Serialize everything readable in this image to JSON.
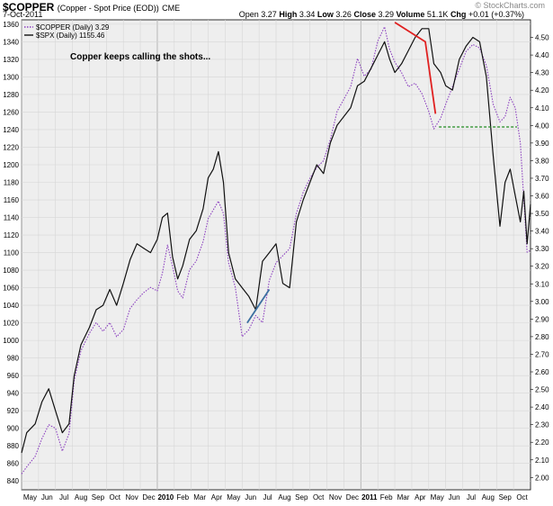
{
  "header": {
    "symbol": "$COPPER",
    "description": "(Copper - Spot Price (EOD))",
    "exchange": "CME",
    "date": "7-Oct-2011",
    "watermark": "© StockCharts.com"
  },
  "quote": {
    "open_label": "Open",
    "open": "3.27",
    "high_label": "High",
    "high": "3.34",
    "low_label": "Low",
    "low": "3.26",
    "close_label": "Close",
    "close": "3.29",
    "volume_label": "Volume",
    "volume": "51.1K",
    "chg_label": "Chg",
    "chg": "+0.01 (+0.37%)"
  },
  "chart_data": {
    "type": "line",
    "title": "$COPPER (Copper - Spot Price (EOD)) CME",
    "annotation": "Copper keeps calling the shots...",
    "legend_position": "top-left",
    "grid": true,
    "x_axis": {
      "tick_labels": [
        "May",
        "Jun",
        "Jul",
        "Aug",
        "Sep",
        "Oct",
        "Nov",
        "Dec",
        "2010",
        "Feb",
        "Mar",
        "Apr",
        "May",
        "Jun",
        "Jul",
        "Aug",
        "Sep",
        "Oct",
        "Nov",
        "Dec",
        "2011",
        "Feb",
        "Mar",
        "Apr",
        "May",
        "Jun",
        "Jul",
        "Aug",
        "Sep",
        "Oct"
      ],
      "range_months": [
        0,
        30
      ]
    },
    "y_left": {
      "series": "$SPX",
      "ylim": [
        830,
        1365
      ],
      "ticks": [
        840,
        860,
        880,
        900,
        920,
        940,
        960,
        980,
        1000,
        1020,
        1040,
        1060,
        1080,
        1100,
        1120,
        1140,
        1160,
        1180,
        1200,
        1220,
        1240,
        1260,
        1280,
        1300,
        1320,
        1340,
        1360
      ]
    },
    "y_right": {
      "series": "$COPPER",
      "ylim": [
        1.93,
        4.6
      ],
      "ticks": [
        "2.00",
        "2.10",
        "2.20",
        "2.30",
        "2.40",
        "2.50",
        "2.60",
        "2.70",
        "2.80",
        "2.90",
        "3.00",
        "3.10",
        "3.20",
        "3.30",
        "3.40",
        "3.50",
        "3.60",
        "3.70",
        "3.80",
        "3.90",
        "4.00",
        "4.10",
        "4.20",
        "4.30",
        "4.40",
        "4.50"
      ]
    },
    "series": [
      {
        "name": "$COPPER (Daily) 3.29",
        "axis": "right",
        "color": "#8b3fbf",
        "style": "dotted",
        "points": [
          [
            0,
            2.02
          ],
          [
            0.3,
            2.06
          ],
          [
            0.8,
            2.12
          ],
          [
            1.2,
            2.22
          ],
          [
            1.6,
            2.3
          ],
          [
            2.0,
            2.28
          ],
          [
            2.4,
            2.15
          ],
          [
            2.8,
            2.25
          ],
          [
            3.1,
            2.55
          ],
          [
            3.5,
            2.72
          ],
          [
            4.0,
            2.82
          ],
          [
            4.4,
            2.88
          ],
          [
            4.8,
            2.83
          ],
          [
            5.2,
            2.88
          ],
          [
            5.6,
            2.8
          ],
          [
            6.0,
            2.84
          ],
          [
            6.4,
            2.96
          ],
          [
            6.8,
            3.01
          ],
          [
            7.2,
            3.05
          ],
          [
            7.6,
            3.08
          ],
          [
            8.0,
            3.06
          ],
          [
            8.3,
            3.16
          ],
          [
            8.6,
            3.32
          ],
          [
            8.9,
            3.2
          ],
          [
            9.2,
            3.06
          ],
          [
            9.5,
            3.02
          ],
          [
            9.9,
            3.18
          ],
          [
            10.3,
            3.23
          ],
          [
            10.7,
            3.34
          ],
          [
            11.0,
            3.47
          ],
          [
            11.3,
            3.52
          ],
          [
            11.6,
            3.57
          ],
          [
            11.9,
            3.5
          ],
          [
            12.2,
            3.22
          ],
          [
            12.6,
            3.08
          ],
          [
            13.0,
            2.8
          ],
          [
            13.4,
            2.84
          ],
          [
            13.8,
            2.92
          ],
          [
            14.2,
            2.88
          ],
          [
            14.6,
            3.12
          ],
          [
            15.0,
            3.22
          ],
          [
            15.4,
            3.26
          ],
          [
            15.8,
            3.3
          ],
          [
            16.2,
            3.5
          ],
          [
            16.6,
            3.62
          ],
          [
            17.0,
            3.7
          ],
          [
            17.4,
            3.76
          ],
          [
            17.8,
            3.8
          ],
          [
            18.2,
            3.92
          ],
          [
            18.6,
            4.08
          ],
          [
            19.0,
            4.15
          ],
          [
            19.4,
            4.22
          ],
          [
            19.8,
            4.38
          ],
          [
            20.2,
            4.28
          ],
          [
            20.6,
            4.32
          ],
          [
            21.0,
            4.48
          ],
          [
            21.4,
            4.56
          ],
          [
            21.7,
            4.43
          ],
          [
            22.0,
            4.36
          ],
          [
            22.4,
            4.3
          ],
          [
            22.8,
            4.22
          ],
          [
            23.2,
            4.24
          ],
          [
            23.6,
            4.18
          ],
          [
            24.0,
            4.08
          ],
          [
            24.3,
            3.98
          ],
          [
            24.7,
            4.04
          ],
          [
            25.0,
            4.12
          ],
          [
            25.4,
            4.22
          ],
          [
            25.8,
            4.32
          ],
          [
            26.2,
            4.42
          ],
          [
            26.6,
            4.46
          ],
          [
            27.0,
            4.44
          ],
          [
            27.4,
            4.34
          ],
          [
            27.8,
            4.12
          ],
          [
            28.2,
            4.02
          ],
          [
            28.5,
            4.05
          ],
          [
            28.8,
            4.16
          ],
          [
            29.1,
            4.1
          ],
          [
            29.4,
            3.9
          ],
          [
            29.6,
            3.58
          ],
          [
            29.8,
            3.28
          ],
          [
            30.0,
            3.29
          ]
        ]
      },
      {
        "name": "$SPX (Daily) 1155.46",
        "axis": "left",
        "color": "#111111",
        "style": "solid",
        "points": [
          [
            0,
            872
          ],
          [
            0.3,
            895
          ],
          [
            0.8,
            905
          ],
          [
            1.2,
            930
          ],
          [
            1.6,
            945
          ],
          [
            2.0,
            920
          ],
          [
            2.4,
            895
          ],
          [
            2.8,
            905
          ],
          [
            3.1,
            960
          ],
          [
            3.5,
            995
          ],
          [
            4.0,
            1015
          ],
          [
            4.4,
            1035
          ],
          [
            4.8,
            1040
          ],
          [
            5.2,
            1058
          ],
          [
            5.6,
            1040
          ],
          [
            6.0,
            1065
          ],
          [
            6.4,
            1092
          ],
          [
            6.8,
            1110
          ],
          [
            7.2,
            1105
          ],
          [
            7.6,
            1100
          ],
          [
            8.0,
            1115
          ],
          [
            8.3,
            1140
          ],
          [
            8.6,
            1145
          ],
          [
            8.9,
            1095
          ],
          [
            9.2,
            1070
          ],
          [
            9.5,
            1085
          ],
          [
            9.9,
            1115
          ],
          [
            10.3,
            1125
          ],
          [
            10.7,
            1150
          ],
          [
            11.0,
            1185
          ],
          [
            11.3,
            1195
          ],
          [
            11.6,
            1215
          ],
          [
            11.9,
            1180
          ],
          [
            12.2,
            1100
          ],
          [
            12.6,
            1070
          ],
          [
            13.0,
            1060
          ],
          [
            13.4,
            1050
          ],
          [
            13.8,
            1035
          ],
          [
            14.2,
            1090
          ],
          [
            14.6,
            1100
          ],
          [
            15.0,
            1110
          ],
          [
            15.4,
            1065
          ],
          [
            15.8,
            1060
          ],
          [
            16.2,
            1135
          ],
          [
            16.6,
            1160
          ],
          [
            17.0,
            1180
          ],
          [
            17.4,
            1200
          ],
          [
            17.8,
            1190
          ],
          [
            18.2,
            1225
          ],
          [
            18.6,
            1245
          ],
          [
            19.0,
            1255
          ],
          [
            19.4,
            1265
          ],
          [
            19.8,
            1290
          ],
          [
            20.2,
            1295
          ],
          [
            20.6,
            1310
          ],
          [
            21.0,
            1325
          ],
          [
            21.4,
            1340
          ],
          [
            21.7,
            1320
          ],
          [
            22.0,
            1305
          ],
          [
            22.4,
            1315
          ],
          [
            22.8,
            1330
          ],
          [
            23.2,
            1345
          ],
          [
            23.6,
            1355
          ],
          [
            24.0,
            1355
          ],
          [
            24.3,
            1315
          ],
          [
            24.7,
            1305
          ],
          [
            25.0,
            1290
          ],
          [
            25.4,
            1285
          ],
          [
            25.8,
            1320
          ],
          [
            26.2,
            1335
          ],
          [
            26.6,
            1345
          ],
          [
            27.0,
            1340
          ],
          [
            27.4,
            1300
          ],
          [
            27.8,
            1210
          ],
          [
            28.2,
            1130
          ],
          [
            28.5,
            1180
          ],
          [
            28.8,
            1195
          ],
          [
            29.1,
            1165
          ],
          [
            29.4,
            1135
          ],
          [
            29.6,
            1170
          ],
          [
            29.8,
            1110
          ],
          [
            30.0,
            1155
          ]
        ]
      }
    ],
    "trendlines": [
      {
        "axis": "left",
        "color": "#e02020",
        "style": "solid",
        "points": [
          [
            22.0,
            1362
          ],
          [
            23.8,
            1340
          ],
          [
            24.4,
            1258
          ]
        ]
      },
      {
        "axis": "left",
        "color": "#1f8a1f",
        "style": "dashed",
        "points": [
          [
            24.6,
            1243
          ],
          [
            29.2,
            1243
          ]
        ]
      },
      {
        "axis": "left",
        "color": "#3b6fa0",
        "style": "solid",
        "points": [
          [
            13.3,
            1020
          ],
          [
            14.6,
            1058
          ]
        ]
      }
    ]
  }
}
